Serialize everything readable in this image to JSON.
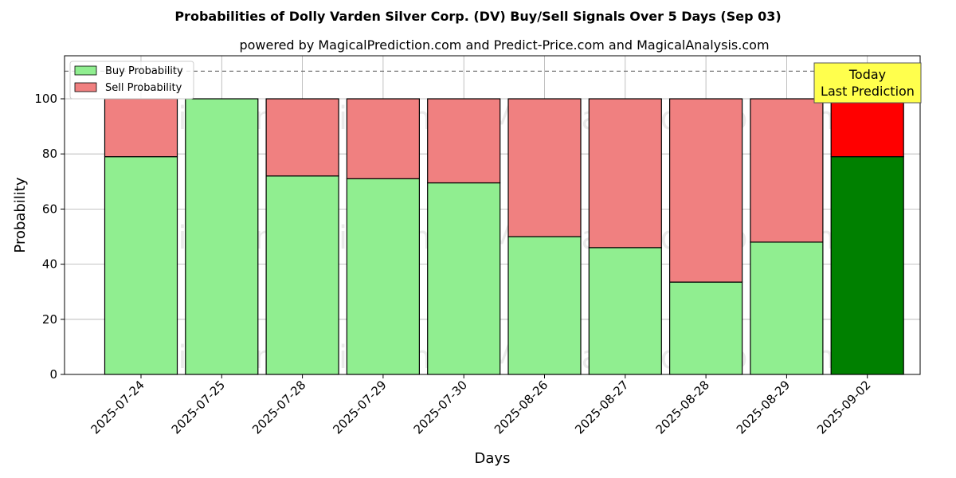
{
  "chart_data": {
    "type": "bar",
    "stacked": true,
    "title": "Probabilities of Dolly Varden Silver Corp. (DV) Buy/Sell Signals Over 5 Days (Sep 03)",
    "subtitle": "powered by MagicalPrediction.com and Predict-Price.com and MagicalAnalysis.com",
    "xlabel": "Days",
    "ylabel": "Probability",
    "ylim": [
      0,
      115
    ],
    "yticks": [
      0,
      20,
      40,
      60,
      80,
      100
    ],
    "grid": true,
    "legend_position": "top-left",
    "reference_line": {
      "y": 110,
      "style": "dashed"
    },
    "categories": [
      "2025-07-24",
      "2025-07-25",
      "2025-07-28",
      "2025-07-29",
      "2025-07-30",
      "2025-08-26",
      "2025-08-27",
      "2025-08-28",
      "2025-08-29",
      "2025-09-02"
    ],
    "series": [
      {
        "name": "Buy Probability",
        "color": "#90ee90",
        "highlight_color": "#008000",
        "values": [
          79,
          100,
          72,
          71,
          69.5,
          50,
          46,
          33.5,
          48,
          79
        ]
      },
      {
        "name": "Sell Probability",
        "color": "#f08080",
        "highlight_color": "#ff0000",
        "values": [
          21,
          0,
          28,
          29,
          30.5,
          50,
          54,
          66.5,
          52,
          21
        ]
      }
    ],
    "highlight_index": 9,
    "annotation": {
      "lines": [
        "Today",
        "Last Prediction"
      ],
      "background": "#ffff4d"
    },
    "watermarks": [
      "MagicalAnalysis.com",
      "MagicalPrediction.com"
    ]
  }
}
